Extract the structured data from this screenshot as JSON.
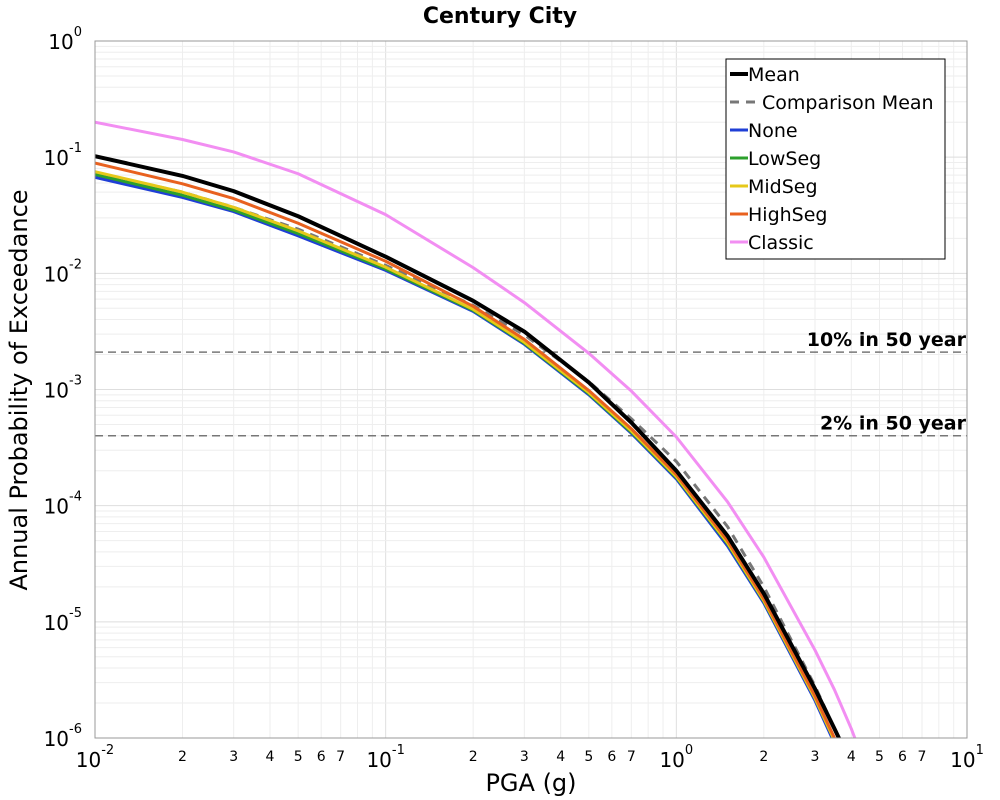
{
  "chart_data": {
    "type": "line",
    "title": "Century City",
    "xlabel": "PGA (g)",
    "ylabel": "Annual Probability of Exceedance",
    "x_scale": "log",
    "y_scale": "log",
    "xlim": [
      0.01,
      10
    ],
    "ylim": [
      1e-06,
      1
    ],
    "grid": true,
    "legend_position": "top-right",
    "x_major_ticks": [
      {
        "base": "10",
        "exp": "-2",
        "value": 0.01
      },
      {
        "base": "10",
        "exp": "-1",
        "value": 0.1
      },
      {
        "base": "10",
        "exp": "0",
        "value": 1
      },
      {
        "base": "10",
        "exp": "1",
        "value": 10
      }
    ],
    "x_minor_labels": [
      "2",
      "3",
      "4",
      "5",
      "6",
      "7"
    ],
    "y_major_ticks": [
      {
        "base": "10",
        "exp": "0",
        "value": 1
      },
      {
        "base": "10",
        "exp": "-1",
        "value": 0.1
      },
      {
        "base": "10",
        "exp": "-2",
        "value": 0.01
      },
      {
        "base": "10",
        "exp": "-3",
        "value": 0.001
      },
      {
        "base": "10",
        "exp": "-4",
        "value": 0.0001
      },
      {
        "base": "10",
        "exp": "-5",
        "value": 1e-05
      },
      {
        "base": "10",
        "exp": "-6",
        "value": 1e-06
      }
    ],
    "reference_lines": [
      {
        "label": "10% in 50 year",
        "y": 0.0021,
        "color": "#777777"
      },
      {
        "label": "2% in 50 year",
        "y": 0.0004,
        "color": "#777777"
      }
    ],
    "series": [
      {
        "name": "Mean",
        "color": "#000000",
        "width": 4,
        "dash": "",
        "x": [
          0.01,
          0.02,
          0.03,
          0.05,
          0.1,
          0.2,
          0.3,
          0.5,
          0.7,
          1.0,
          1.5,
          2.0,
          3.0,
          3.5,
          4.0
        ],
        "y": [
          0.102,
          0.069,
          0.051,
          0.031,
          0.0139,
          0.0058,
          0.00315,
          0.00115,
          0.00052,
          0.0002,
          5.5e-05,
          1.75e-05,
          2.65e-06,
          1.2e-06,
          6e-07
        ]
      },
      {
        "name": "Comparison Mean",
        "color": "#777777",
        "width": 3,
        "dash": "9,7",
        "x": [
          0.01,
          0.02,
          0.03,
          0.05,
          0.1,
          0.2,
          0.3,
          0.5,
          0.7,
          1.0,
          1.5,
          2.0,
          3.0,
          3.5,
          4.0
        ],
        "y": [
          0.074,
          0.05,
          0.037,
          0.024,
          0.0117,
          0.0053,
          0.00295,
          0.00117,
          0.00056,
          0.00024,
          6.6e-05,
          2e-05,
          2.8e-06,
          1.2e-06,
          5.5e-07
        ]
      },
      {
        "name": "None",
        "color": "#1f3fd6",
        "width": 3,
        "dash": "",
        "x": [
          0.01,
          0.02,
          0.03,
          0.05,
          0.1,
          0.2,
          0.3,
          0.5,
          0.7,
          1.0,
          1.5,
          2.0,
          3.0,
          3.5,
          4.0
        ],
        "y": [
          0.067,
          0.045,
          0.034,
          0.021,
          0.0106,
          0.0047,
          0.00245,
          0.0009,
          0.00042,
          0.00017,
          4.5e-05,
          1.45e-05,
          2.1e-06,
          9e-07,
          4.5e-07
        ]
      },
      {
        "name": "LowSeg",
        "color": "#2ca02c",
        "width": 3,
        "dash": "",
        "x": [
          0.01,
          0.02,
          0.03,
          0.05,
          0.1,
          0.2,
          0.3,
          0.5,
          0.7,
          1.0,
          1.5,
          2.0,
          3.0,
          3.5,
          4.0
        ],
        "y": [
          0.071,
          0.047,
          0.035,
          0.022,
          0.0109,
          0.0048,
          0.0025,
          0.00092,
          0.00043,
          0.000175,
          4.7e-05,
          1.5e-05,
          2.2e-06,
          9.5e-07,
          4.8e-07
        ]
      },
      {
        "name": "MidSeg",
        "color": "#e6c81a",
        "width": 3,
        "dash": "",
        "x": [
          0.01,
          0.02,
          0.03,
          0.05,
          0.1,
          0.2,
          0.3,
          0.5,
          0.7,
          1.0,
          1.5,
          2.0,
          3.0,
          3.5,
          4.0
        ],
        "y": [
          0.075,
          0.05,
          0.037,
          0.0232,
          0.0113,
          0.0049,
          0.00255,
          0.00094,
          0.00044,
          0.000178,
          4.8e-05,
          1.52e-05,
          2.2e-06,
          9.5e-07,
          4.8e-07
        ]
      },
      {
        "name": "HighSeg",
        "color": "#e8611f",
        "width": 3,
        "dash": "",
        "x": [
          0.01,
          0.02,
          0.03,
          0.05,
          0.1,
          0.2,
          0.3,
          0.5,
          0.7,
          1.0,
          1.5,
          2.0,
          3.0,
          3.5,
          4.0
        ],
        "y": [
          0.089,
          0.059,
          0.044,
          0.027,
          0.0127,
          0.0052,
          0.0027,
          0.00098,
          0.00046,
          0.000185,
          5e-05,
          1.58e-05,
          2.3e-06,
          1e-06,
          5e-07
        ]
      },
      {
        "name": "Classic",
        "color": "#f28ef2",
        "width": 3,
        "dash": "",
        "x": [
          0.01,
          0.02,
          0.03,
          0.05,
          0.1,
          0.2,
          0.3,
          0.5,
          0.7,
          1.0,
          1.5,
          2.0,
          3.0,
          3.5,
          4.0,
          4.5
        ],
        "y": [
          0.2,
          0.142,
          0.111,
          0.072,
          0.032,
          0.0112,
          0.0056,
          0.00205,
          0.00097,
          0.00039,
          0.000108,
          3.6e-05,
          5.7e-06,
          2.6e-06,
          1.2e-06,
          5.5e-07
        ]
      }
    ]
  }
}
